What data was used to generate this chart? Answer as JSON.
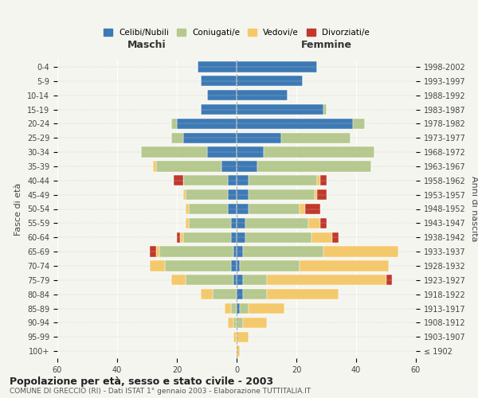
{
  "age_groups": [
    "100+",
    "95-99",
    "90-94",
    "85-89",
    "80-84",
    "75-79",
    "70-74",
    "65-69",
    "60-64",
    "55-59",
    "50-54",
    "45-49",
    "40-44",
    "35-39",
    "30-34",
    "25-29",
    "20-24",
    "15-19",
    "10-14",
    "5-9",
    "0-4"
  ],
  "birth_years": [
    "≤ 1902",
    "1903-1907",
    "1908-1912",
    "1913-1917",
    "1918-1922",
    "1923-1927",
    "1928-1932",
    "1933-1937",
    "1938-1942",
    "1943-1947",
    "1948-1952",
    "1953-1957",
    "1958-1962",
    "1963-1967",
    "1968-1972",
    "1973-1977",
    "1978-1982",
    "1983-1987",
    "1988-1992",
    "1993-1997",
    "1998-2002"
  ],
  "colors": {
    "celibi": "#3d7ab5",
    "coniugati": "#b5c98e",
    "vedovi": "#f5c96a",
    "divorziati": "#c0392b"
  },
  "male": {
    "celibi": [
      0,
      0,
      0,
      0,
      0,
      1,
      2,
      1,
      2,
      2,
      3,
      3,
      3,
      5,
      10,
      18,
      20,
      12,
      10,
      12,
      13
    ],
    "coniugati": [
      0,
      0,
      1,
      2,
      8,
      16,
      22,
      25,
      16,
      14,
      13,
      14,
      15,
      22,
      22,
      4,
      2,
      0,
      0,
      0,
      0
    ],
    "vedovi": [
      0,
      1,
      2,
      2,
      4,
      5,
      5,
      1,
      1,
      1,
      1,
      1,
      0,
      1,
      0,
      0,
      0,
      0,
      0,
      0,
      0
    ],
    "divorziati": [
      0,
      0,
      0,
      0,
      0,
      0,
      0,
      2,
      1,
      0,
      0,
      0,
      3,
      0,
      0,
      0,
      0,
      0,
      0,
      0,
      0
    ]
  },
  "female": {
    "celibi": [
      0,
      0,
      0,
      1,
      2,
      2,
      1,
      2,
      3,
      3,
      4,
      4,
      4,
      7,
      9,
      15,
      39,
      29,
      17,
      22,
      27
    ],
    "coniugati": [
      0,
      0,
      2,
      3,
      8,
      8,
      20,
      27,
      22,
      21,
      17,
      22,
      23,
      38,
      37,
      23,
      4,
      1,
      0,
      0,
      0
    ],
    "vedovi": [
      1,
      4,
      8,
      12,
      24,
      40,
      30,
      25,
      7,
      4,
      2,
      1,
      1,
      0,
      0,
      0,
      0,
      0,
      0,
      0,
      0
    ],
    "divorziati": [
      0,
      0,
      0,
      0,
      0,
      2,
      0,
      0,
      2,
      2,
      5,
      3,
      2,
      0,
      0,
      0,
      0,
      0,
      0,
      0,
      0
    ]
  },
  "xlim": 60,
  "title": "Popolazione per età, sesso e stato civile - 2003",
  "subtitle": "COMUNE DI GRECCIO (RI) - Dati ISTAT 1° gennaio 2003 - Elaborazione TUTTITALIA.IT",
  "xlabel_left": "Maschi",
  "xlabel_right": "Femmine",
  "ylabel_left": "Fasce di età",
  "ylabel_right": "Anni di nascita",
  "legend_labels": [
    "Celibi/Nubili",
    "Coniugati/e",
    "Vedovi/e",
    "Divorziati/e"
  ],
  "background_color": "#f5f5f0"
}
